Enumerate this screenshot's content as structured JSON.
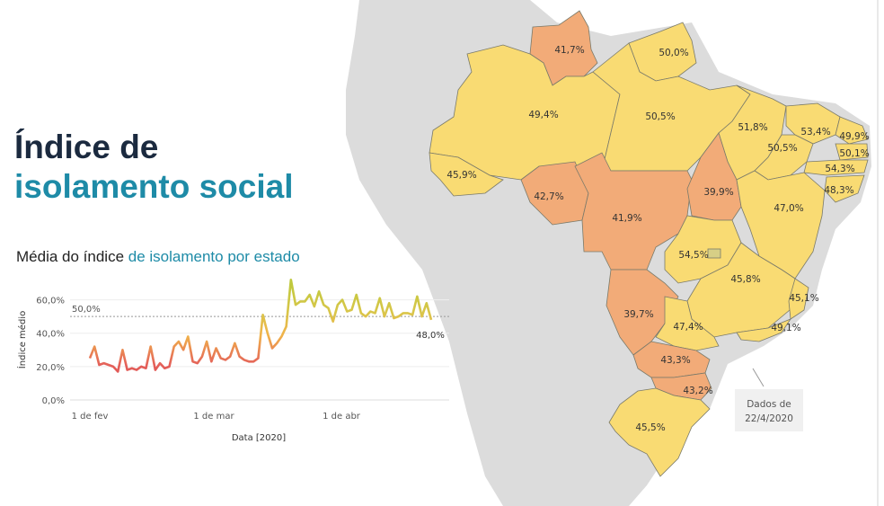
{
  "header": {
    "title_line1": "Índice de",
    "title_line2": "isolamento social"
  },
  "subtitle": {
    "part1": "Média do índice ",
    "part2": "de isolamento por estado"
  },
  "note": {
    "line1": "Dados de",
    "line2": "22/4/2020"
  },
  "colors": {
    "low": "#f2ab78",
    "high": "#f9db73",
    "border": "#7a7a6a",
    "bg_land": "#dcdcdc",
    "accent": "#1e8ba7"
  },
  "chart_data": [
    {
      "type": "line",
      "title": "Média do índice de isolamento por estado",
      "xlabel": "Data [2020]",
      "ylabel": "Índice médio",
      "ylim": [
        0,
        70
      ],
      "yticks": [
        "0,0%",
        "20,0%",
        "40,0%",
        "60,0%"
      ],
      "xticks": [
        "1 de fev",
        "1 de mar",
        "1 de abr"
      ],
      "reference_line": {
        "value": 50,
        "label": "50,0%"
      },
      "last_label": "48,0%",
      "series": [
        {
          "name": "Índice médio",
          "values": [
            25,
            32,
            21,
            22,
            21,
            20,
            17,
            30,
            18,
            19,
            18,
            20,
            19,
            32,
            18,
            22,
            19,
            20,
            32,
            35,
            30,
            38,
            23,
            22,
            26,
            35,
            23,
            31,
            25,
            24,
            26,
            34,
            26,
            24,
            23,
            23,
            25,
            51,
            40,
            31,
            34,
            38,
            44,
            72,
            57,
            59,
            59,
            63,
            56,
            65,
            57,
            55,
            47,
            57,
            60,
            53,
            54,
            63,
            52,
            50,
            53,
            52,
            61,
            50,
            58,
            49,
            50,
            52,
            52,
            51,
            62,
            50,
            58,
            48
          ]
        }
      ]
    },
    {
      "type": "choropleth",
      "title": "Índice de isolamento social por estado",
      "regions": [
        {
          "name": "RR",
          "value": "41,7%"
        },
        {
          "name": "AP",
          "value": "50,0%"
        },
        {
          "name": "AM",
          "value": "49,4%"
        },
        {
          "name": "PA",
          "value": "50,5%"
        },
        {
          "name": "MA",
          "value": "51,8%"
        },
        {
          "name": "CE",
          "value": "53,4%"
        },
        {
          "name": "RN",
          "value": "49,9%"
        },
        {
          "name": "PB",
          "value": "50,1%"
        },
        {
          "name": "PI",
          "value": "50,5%"
        },
        {
          "name": "PE",
          "value": "54,3%"
        },
        {
          "name": "AL",
          "value": "48,3%"
        },
        {
          "name": "AC",
          "value": "45,9%"
        },
        {
          "name": "RO",
          "value": "42,7%"
        },
        {
          "name": "MT",
          "value": "41,9%"
        },
        {
          "name": "TO",
          "value": "39,9%"
        },
        {
          "name": "BA",
          "value": "47,0%"
        },
        {
          "name": "GO",
          "value": "54,5%"
        },
        {
          "name": "MG",
          "value": "45,8%"
        },
        {
          "name": "ES",
          "value": "45,1%"
        },
        {
          "name": "MS",
          "value": "39,7%"
        },
        {
          "name": "SP",
          "value": "47,4%"
        },
        {
          "name": "RJ",
          "value": "49,1%"
        },
        {
          "name": "PR",
          "value": "43,3%"
        },
        {
          "name": "SC",
          "value": "43,2%"
        },
        {
          "name": "RS",
          "value": "45,5%"
        }
      ]
    }
  ]
}
